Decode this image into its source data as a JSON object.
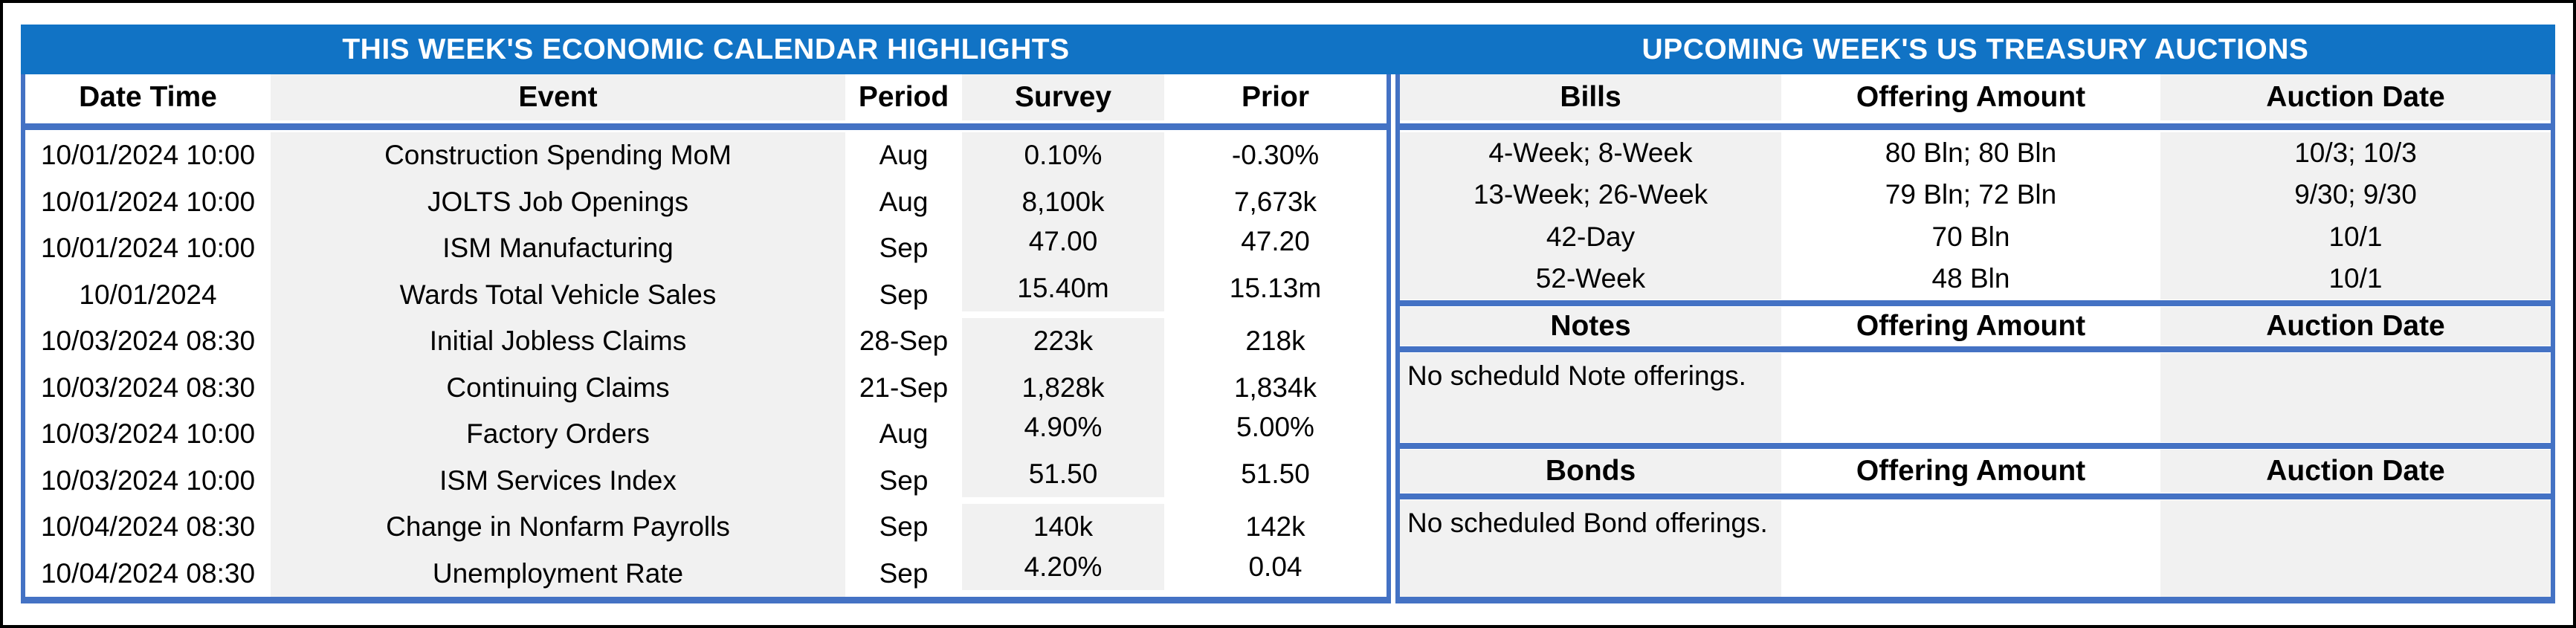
{
  "titles": {
    "left": "THIS WEEK'S ECONOMIC CALENDAR HIGHLIGHTS",
    "right": "UPCOMING WEEK'S US TREASURY AUCTIONS"
  },
  "colors": {
    "title_bar_blue": "#1173C5",
    "border_blue": "#4472C4",
    "stripe_gray": "#F1F1F1",
    "title_text": "#FFFFFF",
    "body_text": "#000000"
  },
  "calendar": {
    "columns": {
      "date": "Date Time",
      "event": "Event",
      "period": "Period",
      "survey": "Survey",
      "prior": "Prior"
    },
    "rows": [
      {
        "date": "10/01/2024 10:00",
        "event": "Construction Spending MoM",
        "period": "Aug",
        "survey": "0.10%",
        "prior": "-0.30%"
      },
      {
        "date": "10/01/2024 10:00",
        "event": "JOLTS Job Openings",
        "period": "Aug",
        "survey": "8,100k",
        "prior": "7,673k"
      },
      {
        "date": "10/01/2024 10:00",
        "event": "ISM Manufacturing",
        "period": "Sep",
        "survey": "47.00",
        "prior": "47.20"
      },
      {
        "date": "10/01/2024",
        "event": "Wards Total Vehicle Sales",
        "period": "Sep",
        "survey": "15.40m",
        "prior": "15.13m"
      },
      {
        "date": "10/03/2024 08:30",
        "event": "Initial Jobless Claims",
        "period": "28-Sep",
        "survey": "223k",
        "prior": "218k"
      },
      {
        "date": "10/03/2024 08:30",
        "event": "Continuing Claims",
        "period": "21-Sep",
        "survey": "1,828k",
        "prior": "1,834k"
      },
      {
        "date": "10/03/2024 10:00",
        "event": "Factory Orders",
        "period": "Aug",
        "survey": "4.90%",
        "prior": "5.00%"
      },
      {
        "date": "10/03/2024 10:00",
        "event": "ISM Services Index",
        "period": "Sep",
        "survey": "51.50",
        "prior": "51.50"
      },
      {
        "date": "10/04/2024 08:30",
        "event": "Change in Nonfarm Payrolls",
        "period": "Sep",
        "survey": "140k",
        "prior": "142k"
      },
      {
        "date": "10/04/2024 08:30",
        "event": "Unemployment Rate",
        "period": "Sep",
        "survey": "4.20%",
        "prior": "0.04"
      }
    ]
  },
  "auctions": {
    "bills": {
      "label": "Bills",
      "amount_label": "Offering Amount",
      "date_label": "Auction Date",
      "rows": [
        {
          "term": "4-Week; 8-Week",
          "amount": "80 Bln; 80 Bln",
          "date": "10/3; 10/3"
        },
        {
          "term": "13-Week; 26-Week",
          "amount": "79 Bln; 72 Bln",
          "date": "9/30; 9/30"
        },
        {
          "term": "42-Day",
          "amount": "70 Bln",
          "date": "10/1"
        },
        {
          "term": "52-Week",
          "amount": "48 Bln",
          "date": "10/1"
        }
      ]
    },
    "notes": {
      "label": "Notes",
      "amount_label": "Offering Amount",
      "date_label": "Auction Date",
      "message": "No scheduld Note offerings."
    },
    "bonds": {
      "label": "Bonds",
      "amount_label": "Offering Amount",
      "date_label": "Auction Date",
      "message": "No scheduled Bond offerings."
    }
  }
}
